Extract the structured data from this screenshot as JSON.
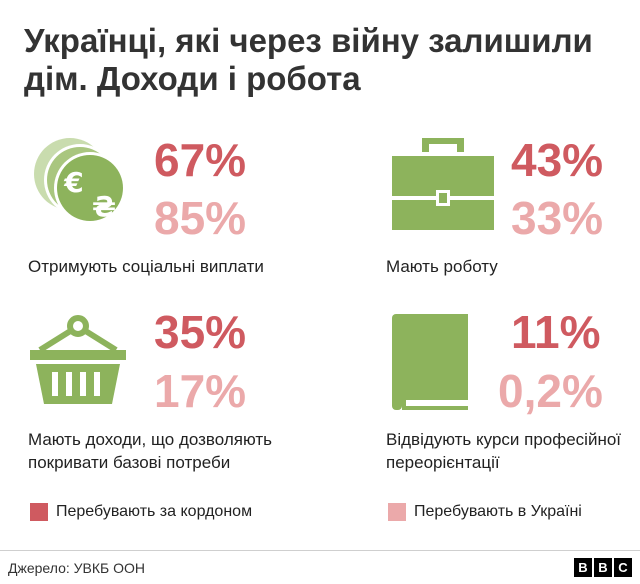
{
  "title": "Українці, які через війну залишили дім. Доходи і робота",
  "colors": {
    "abroad": "#cf5a60",
    "home": "#eba9aa",
    "icon": "#8db35c"
  },
  "chart_data": {
    "type": "table",
    "title": "Українці, які через війну залишили дім. Доходи і робота",
    "legend": [
      {
        "name": "Перебувають за кордоном",
        "color": "#cf5a60"
      },
      {
        "name": "Перебувають в Україні",
        "color": "#eba9aa"
      }
    ],
    "items": [
      {
        "icon": "coins-icon",
        "label": "Отримують соціальні виплати",
        "abroad": "67%",
        "home": "85%"
      },
      {
        "icon": "briefcase-icon",
        "label": "Мають роботу",
        "abroad": "43%",
        "home": "33%"
      },
      {
        "icon": "basket-icon",
        "label": "Мають доходи, що дозволяють покривати базові потреби",
        "abroad": "35%",
        "home": "17%"
      },
      {
        "icon": "book-icon",
        "label": "Відвідують курси професійної переорієнтації",
        "abroad": "11%",
        "home": "0,2%"
      }
    ]
  },
  "footer": {
    "source": "Джерело: УВКБ ООН",
    "brand": [
      "B",
      "B",
      "C"
    ]
  }
}
